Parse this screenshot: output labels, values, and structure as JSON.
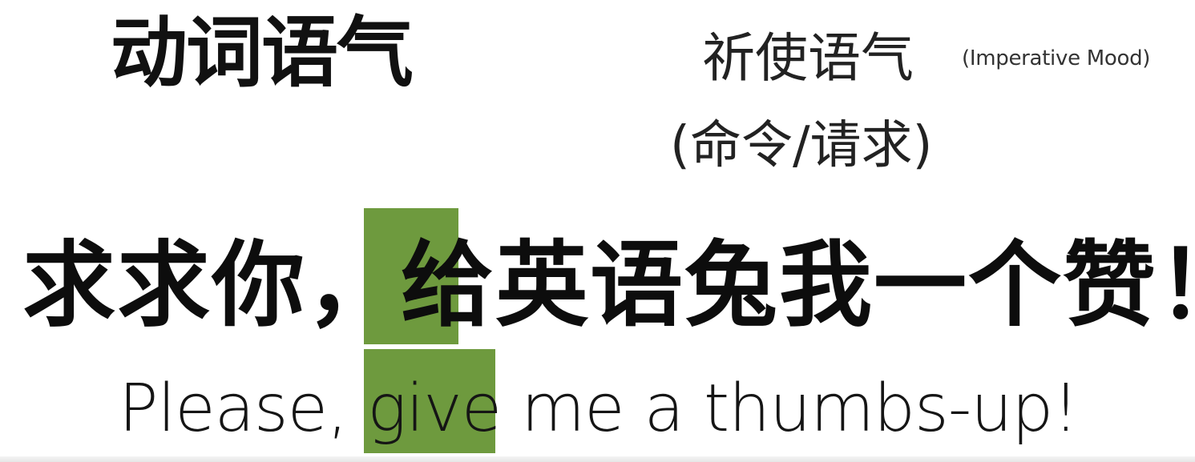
{
  "heading": "动词语气",
  "mood": {
    "name_zh": "祈使语气",
    "name_en": "(Imperative Mood)",
    "subtitle_zh": "(命令/请求)"
  },
  "example": {
    "zh_before": "求求你，",
    "zh_highlight": "给",
    "zh_after": "英语兔我一个赞！",
    "en_before": "Please, ",
    "en_highlight": "give",
    "en_after": " me a thumbs-up!"
  },
  "colors": {
    "highlight": "#6e9a3e",
    "text": "#111111",
    "background": "#ffffff"
  }
}
